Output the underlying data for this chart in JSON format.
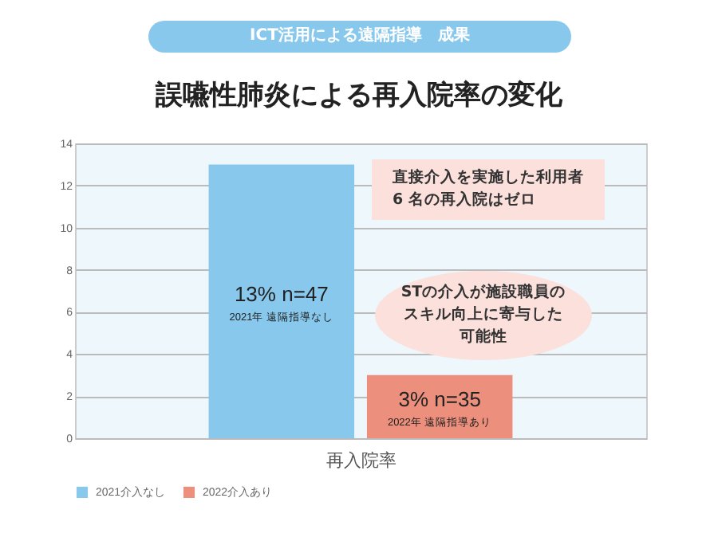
{
  "chart_data": {
    "type": "bar",
    "subtitle": "ICT活用による遠隔指導　成果",
    "title": "誤嚥性肺炎による再入院率の変化",
    "xlabel": "再入院率",
    "categories": [
      null
    ],
    "series": [
      {
        "name": "2021介入なし",
        "color": "#88c8ec",
        "values": [
          13
        ],
        "value_labels": [
          "13% n=47"
        ]
      },
      {
        "name": "2022介入あり",
        "color": "#ec8f7c",
        "values": [
          3
        ],
        "value_labels": [
          "3% n=35"
        ]
      }
    ],
    "ylim": [
      0,
      14
    ],
    "yticks": [
      0,
      2,
      4,
      6,
      8,
      10,
      12,
      14
    ],
    "grid": "y",
    "legend": "bottom",
    "annotations": [
      "2021年 遠隔指導なし",
      "2022年 遠隔指導あり",
      "直接介入を実施した利用者6 名の再入院はゼロ",
      "STの介入が施設職員のスキル向上に寄与した可能性"
    ]
  }
}
